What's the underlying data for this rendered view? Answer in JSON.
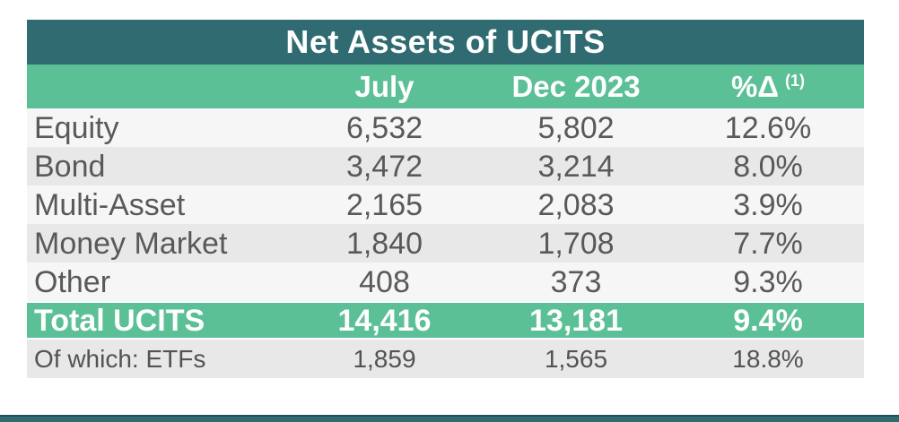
{
  "chart_data": {
    "type": "table",
    "title": "Net Assets of UCITS",
    "columns": [
      "",
      "July",
      "Dec 2023",
      "%Δ (1)"
    ],
    "rows": [
      {
        "label": "Equity",
        "july": 6532,
        "dec_2023": 5802,
        "pct_change": "12.6%"
      },
      {
        "label": "Bond",
        "july": 3472,
        "dec_2023": 3214,
        "pct_change": "8.0%"
      },
      {
        "label": "Multi-Asset",
        "july": 2165,
        "dec_2023": 2083,
        "pct_change": "3.9%"
      },
      {
        "label": "Money Market",
        "july": 1840,
        "dec_2023": 1708,
        "pct_change": "7.7%"
      },
      {
        "label": "Other",
        "july": 408,
        "dec_2023": 373,
        "pct_change": "9.3%"
      }
    ],
    "total_row": {
      "label": "Total UCITS",
      "july": 14416,
      "dec_2023": 13181,
      "pct_change": "9.4%"
    },
    "etf_row": {
      "label": "Of which: ETFs",
      "july": 1859,
      "dec_2023": 1565,
      "pct_change": "18.8%"
    }
  },
  "table": {
    "title": "Net Assets of UCITS",
    "header": {
      "july": "July",
      "dec": "Dec 2023",
      "pct": "%Δ",
      "pct_note": "(1)"
    },
    "rows": [
      {
        "label": "Equity",
        "july": "6,532",
        "dec": "5,802",
        "pct": "12.6%"
      },
      {
        "label": "Bond",
        "july": "3,472",
        "dec": "3,214",
        "pct": "8.0%"
      },
      {
        "label": "Multi-Asset",
        "july": "2,165",
        "dec": "2,083",
        "pct": "3.9%"
      },
      {
        "label": "Money Market",
        "july": "1,840",
        "dec": "1,708",
        "pct": "7.7%"
      },
      {
        "label": "Other",
        "july": "408",
        "dec": "373",
        "pct": "9.3%"
      }
    ],
    "total": {
      "label": "Total UCITS",
      "july": "14,416",
      "dec": "13,181",
      "pct": "9.4%"
    },
    "etf": {
      "label": "Of which: ETFs",
      "july": "1,859",
      "dec": "1,565",
      "pct": "18.8%"
    }
  },
  "colors": {
    "title_bar_teal": "#2F6B71",
    "header_green": "#5CC097",
    "row_light": "#F6F6F6",
    "row_gray": "#E8E8E8",
    "data_text": "#595959",
    "accent_bar_teal": "#2F6B71"
  }
}
